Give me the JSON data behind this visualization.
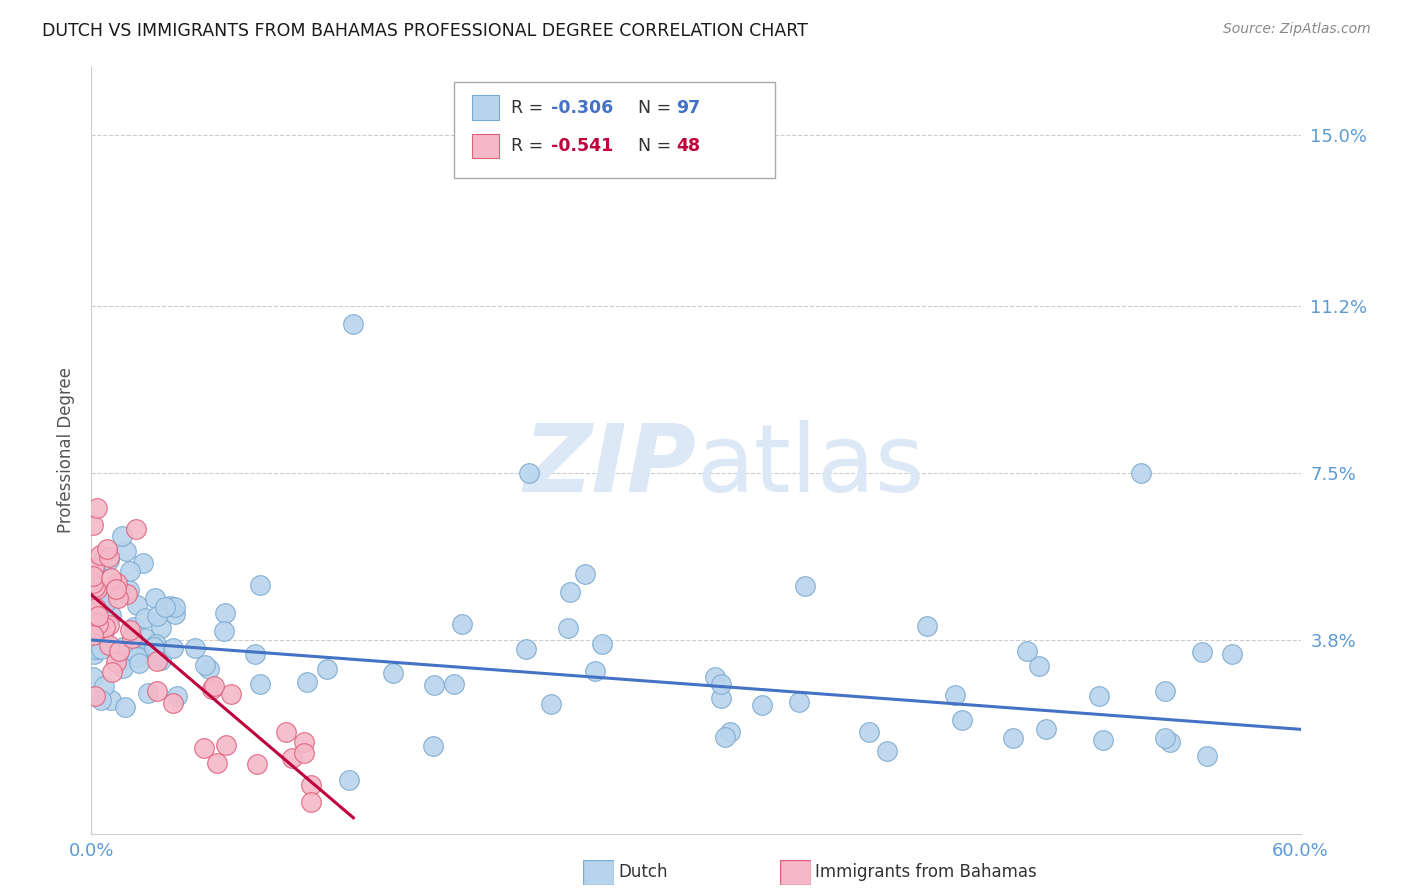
{
  "title": "DUTCH VS IMMIGRANTS FROM BAHAMAS PROFESSIONAL DEGREE CORRELATION CHART",
  "source": "Source: ZipAtlas.com",
  "ylabel": "Professional Degree",
  "y_tick_values": [
    0.038,
    0.075,
    0.112,
    0.15
  ],
  "y_tick_labels": [
    "3.8%",
    "7.5%",
    "11.2%",
    "15.0%"
  ],
  "xlim": [
    0.0,
    0.6
  ],
  "ylim": [
    -0.005,
    0.165
  ],
  "x_ticks": [
    0.0,
    0.6
  ],
  "x_tick_labels": [
    "0.0%",
    "60.0%"
  ],
  "legend_label1_r": "-0.306",
  "legend_label1_n": "97",
  "legend_label2_r": "-0.541",
  "legend_label2_n": "48",
  "title_color": "#1a1a1a",
  "source_color": "#888888",
  "grid_color": "#cccccc",
  "tick_label_color": "#5b9bd5",
  "ylabel_color": "#555555",
  "dutch_color": "#b8d4ed",
  "dutch_edge_color": "#7aaad0",
  "bahamas_color": "#f5b8c8",
  "bahamas_edge_color": "#e0607a",
  "dutch_line_color": "#4472c4",
  "bahamas_line_color": "#c0003c",
  "watermark_color": "#dce8f5",
  "dutch_intercept": 0.038,
  "dutch_slope": -0.033,
  "bahamas_intercept": 0.048,
  "bahamas_slope": -0.38,
  "dutch_line_x_end": 0.6,
  "bahamas_line_x_end": 0.13
}
